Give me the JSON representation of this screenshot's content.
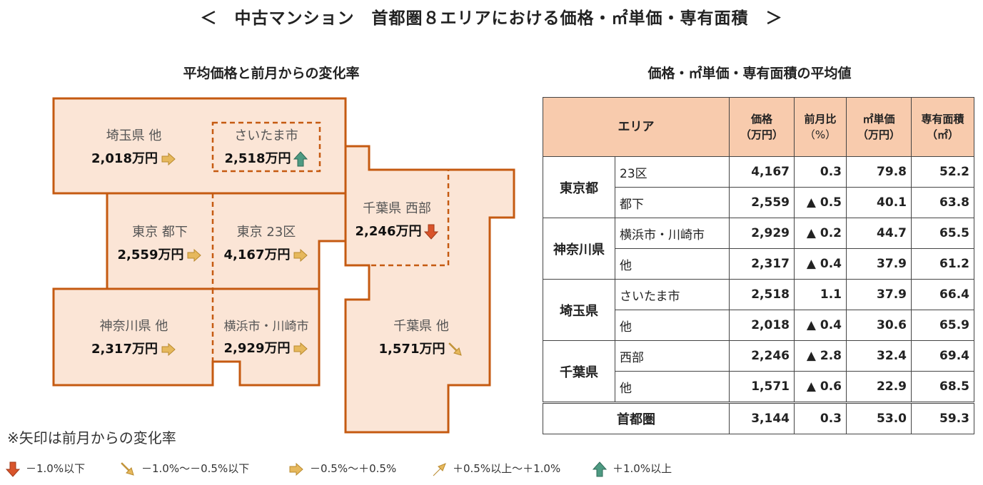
{
  "main_title": "＜　中古マンション　首都圏８エリアにおける価格・㎡単価・専有面積　＞",
  "map_title": "平均価格と前月からの変化率",
  "table_title": "価格・㎡単価・専有面積の平均値",
  "colors": {
    "fill": "#fbe5d6",
    "border": "#c55a11",
    "header": "#f8cbad",
    "up": "#4e9a82",
    "down": "#d9542b",
    "flat": "#e6b85c"
  },
  "map": {
    "saitama_other": {
      "name": "埼玉県 他",
      "price": "2,018万円",
      "arrow": "flat"
    },
    "saitama_city": {
      "name": "さいたま市",
      "price": "2,518万円",
      "arrow": "up"
    },
    "tokyo_tokka": {
      "name": "東京 都下",
      "price": "2,559万円",
      "arrow": "flat"
    },
    "tokyo_23": {
      "name": "東京 23区",
      "price": "4,167万円",
      "arrow": "flat"
    },
    "chiba_west": {
      "name": "千葉県 西部",
      "price": "2,246万円",
      "arrow": "down"
    },
    "kanagawa_other": {
      "name": "神奈川県 他",
      "price": "2,317万円",
      "arrow": "flat"
    },
    "yokohama": {
      "name": "横浜市・川崎市",
      "price": "2,929万円",
      "arrow": "flat"
    },
    "chiba_other": {
      "name": "千葉県 他",
      "price": "1,571万円",
      "arrow": "slight-down"
    }
  },
  "table": {
    "headers": {
      "area": "エリア",
      "price": "価格",
      "price_unit": "（万円）",
      "change": "前月比",
      "change_unit": "（%）",
      "unit_price": "㎡単価",
      "unit_price_unit": "（万円）",
      "space": "専有面積",
      "space_unit": "（㎡）"
    },
    "groups": [
      {
        "pref": "東京都",
        "rows": [
          {
            "sub": "23区",
            "price": "4,167",
            "change": "0.3",
            "unit": "79.8",
            "space": "52.2"
          },
          {
            "sub": "都下",
            "price": "2,559",
            "change": "▲ 0.5",
            "unit": "40.1",
            "space": "63.8"
          }
        ]
      },
      {
        "pref": "神奈川県",
        "rows": [
          {
            "sub": "横浜市・川崎市",
            "price": "2,929",
            "change": "▲ 0.2",
            "unit": "44.7",
            "space": "65.5"
          },
          {
            "sub": "他",
            "price": "2,317",
            "change": "▲ 0.4",
            "unit": "37.9",
            "space": "61.2"
          }
        ]
      },
      {
        "pref": "埼玉県",
        "rows": [
          {
            "sub": "さいたま市",
            "price": "2,518",
            "change": "1.1",
            "unit": "37.9",
            "space": "66.4"
          },
          {
            "sub": "他",
            "price": "2,018",
            "change": "▲ 0.4",
            "unit": "30.6",
            "space": "65.9"
          }
        ]
      },
      {
        "pref": "千葉県",
        "rows": [
          {
            "sub": "西部",
            "price": "2,246",
            "change": "▲ 2.8",
            "unit": "32.4",
            "space": "69.4"
          },
          {
            "sub": "他",
            "price": "1,571",
            "change": "▲ 0.6",
            "unit": "22.9",
            "space": "68.5"
          }
        ]
      }
    ],
    "total": {
      "label": "首都圏",
      "price": "3,144",
      "change": "0.3",
      "unit": "53.0",
      "space": "59.3"
    }
  },
  "note": "※矢印は前月からの変化率",
  "legend": [
    {
      "icon": "down",
      "label": "－1.0%以下"
    },
    {
      "icon": "slight-down",
      "label": "－1.0%～－0.5%以下"
    },
    {
      "icon": "flat",
      "label": "－0.5%～＋0.5%"
    },
    {
      "icon": "slight-up",
      "label": "＋0.5%以上～＋1.0%"
    },
    {
      "icon": "up",
      "label": "＋1.0%以上"
    }
  ]
}
